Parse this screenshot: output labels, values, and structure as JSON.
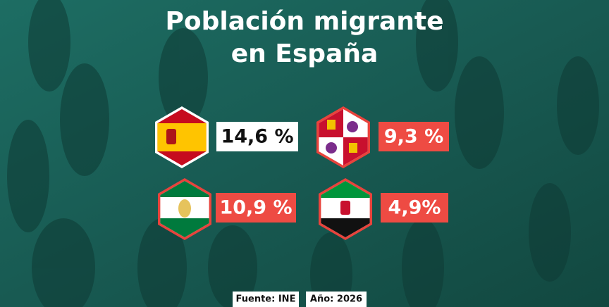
{
  "title": {
    "lines": [
      "Población migrante",
      "en España"
    ]
  },
  "items": [
    {
      "label": "14,6 %"
    },
    {
      "label": "9,3 %"
    },
    {
      "label": "10,9 %"
    },
    {
      "label": "4,9%"
    }
  ],
  "footer": {
    "source": "Fuente: INE",
    "year": "Año: 2026"
  }
}
